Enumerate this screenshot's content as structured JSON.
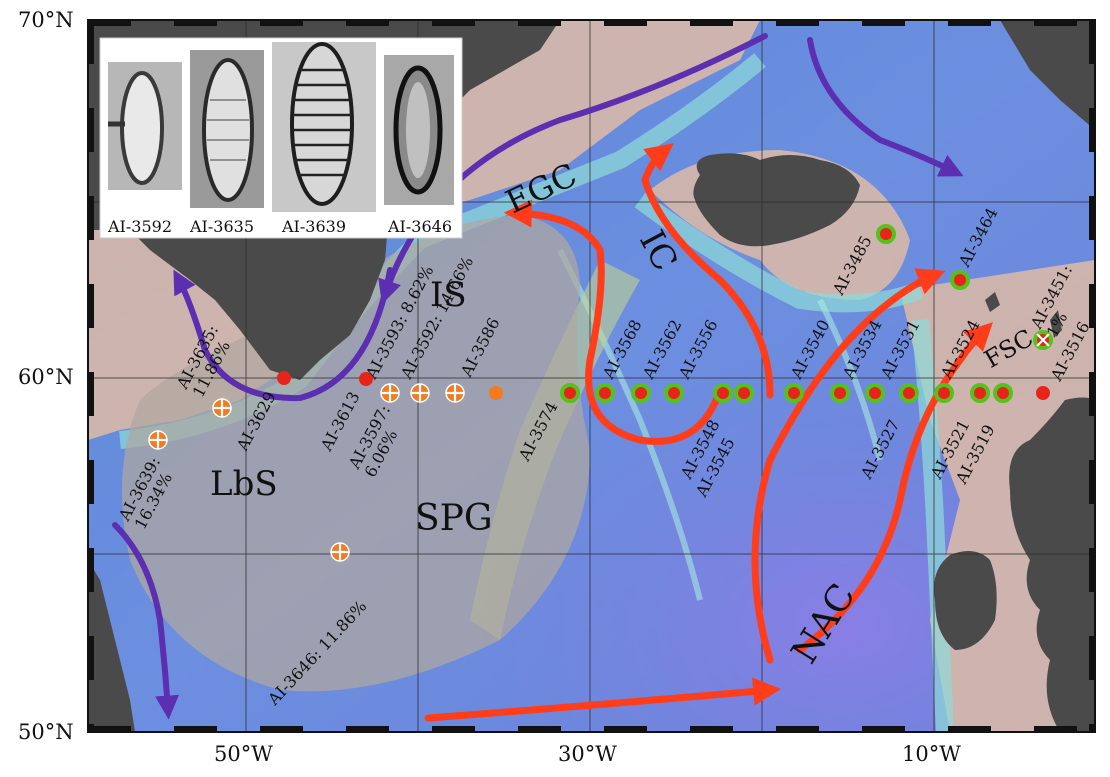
{
  "axes": {
    "lat_labels": [
      "70°N",
      "60°N",
      "50°N"
    ],
    "lon_labels": [
      "50°W",
      "30°W",
      "10°W"
    ]
  },
  "regions": {
    "lbs": "LbS",
    "spg": "SPG",
    "is": "IS",
    "ic": "IC",
    "egc": "EGC",
    "nac": "NAC",
    "fsc": "FSC"
  },
  "inset": {
    "captions": [
      "AI-3592",
      "AI-3635",
      "AI-3639",
      "AI-3646"
    ]
  },
  "stations": [
    {
      "id": "s3639",
      "label": "AI-3639:\n16.34%",
      "marker": "cross-orange"
    },
    {
      "id": "s3635",
      "label": "AI-3635:\n11.86%",
      "marker": "cross-orange"
    },
    {
      "id": "s3629",
      "label": "AI-3629",
      "marker": "red"
    },
    {
      "id": "s3613",
      "label": "AI-3613",
      "marker": "red"
    },
    {
      "id": "s3597",
      "label": "AI-3597:\n6.06%",
      "marker": "cross-orange"
    },
    {
      "id": "s3593",
      "label": "AI-3593: 8.62%",
      "marker": "cross-orange"
    },
    {
      "id": "s3592",
      "label": "AI-3592: 14.66%",
      "marker": "cross-orange"
    },
    {
      "id": "s3586",
      "label": "AI-3586",
      "marker": "orange"
    },
    {
      "id": "s3574",
      "label": "AI-3574",
      "marker": "green"
    },
    {
      "id": "s3568",
      "label": "AI-3568",
      "marker": "green"
    },
    {
      "id": "s3562",
      "label": "AI-3562",
      "marker": "green"
    },
    {
      "id": "s3556",
      "label": "AI-3556",
      "marker": "green"
    },
    {
      "id": "s3548",
      "label": "AI-3548",
      "marker": "green"
    },
    {
      "id": "s3545",
      "label": "AI-3545",
      "marker": "green"
    },
    {
      "id": "s3540",
      "label": "AI-3540",
      "marker": "green"
    },
    {
      "id": "s3534",
      "label": "AI-3534",
      "marker": "green"
    },
    {
      "id": "s3531",
      "label": "AI-3531",
      "marker": "green"
    },
    {
      "id": "s3527",
      "label": "AI-3527",
      "marker": "green"
    },
    {
      "id": "s3524",
      "label": "AI-3524",
      "marker": "green"
    },
    {
      "id": "s3521",
      "label": "AI-3521",
      "marker": "green"
    },
    {
      "id": "s3519",
      "label": "AI-3519",
      "marker": "green"
    },
    {
      "id": "s3516",
      "label": "AI-3516",
      "marker": "red"
    },
    {
      "id": "s3485",
      "label": "AI-3485",
      "marker": "green"
    },
    {
      "id": "s3464",
      "label": "AI-3464",
      "marker": "green"
    },
    {
      "id": "s3451",
      "label": "AI-3451:\n1%",
      "marker": "cross-green"
    },
    {
      "id": "s3646",
      "label": "AI-3646: 11.86%",
      "marker": "cross-orange"
    }
  ],
  "colors": {
    "warm_current": "#ff3d1a",
    "cold_current": "#5b2fb0",
    "land": "#4a4a4a",
    "spg_overlay": "#b0a8a0",
    "marker_green": "#55c21b",
    "marker_red": "#e8231a",
    "marker_orange": "#f47a1f"
  }
}
